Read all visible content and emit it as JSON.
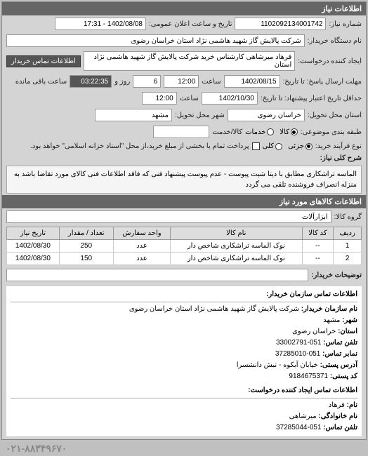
{
  "header": {
    "title": "اطلاعات نیاز"
  },
  "info": {
    "need_no_label": "شماره نیاز:",
    "need_no": "1102092134001742",
    "announce_label": "تاریخ و ساعت اعلان عمومی:",
    "announce_value": "1402/08/08 - 17:31",
    "buyer_org_label": "نام دستگاه خریدار:",
    "buyer_org": "شرکت پالایش گاز شهید هاشمی نژاد   استان خراسان رضوی",
    "requester_label": "ایجاد کننده درخواست:",
    "requester": "فرهاد میرشاهی کارشناس خرید شرکت پالایش گاز شهید هاشمی نژاد   استان",
    "buyer_contact_btn": "اطلاعات تماس خریدار",
    "deadline_send_label": "مهلت ارسال پاسخ: تا تاریخ:",
    "deadline_send_date": "1402/08/15",
    "time_label": "ساعت",
    "deadline_send_time": "12:00",
    "days_label": "روز و",
    "days_value": "6",
    "remain_label": "ساعت باقی مانده",
    "remain_value": "03:22:35",
    "credit_label": "حداقل تاریخ اعتبار پیشنهاد: تا تاریخ:",
    "credit_date": "1402/10/30",
    "credit_time": "12:00",
    "delivery_state_label": "استان محل تحویل:",
    "delivery_state": "خراسان رضوی",
    "delivery_city_label": "شهر محل تحویل:",
    "delivery_city": "مشهد",
    "budget_label": "طبقه بندی موضوعی:",
    "budget_opts": {
      "kala": "کالا",
      "khadamat": "خدمات"
    },
    "kala_khadmat_label": "کالا/خدمت",
    "buy_type_label": "نوع فرآیند خرید:",
    "buy_opts": {
      "partial": "جزئی",
      "total": "کلی"
    },
    "tax_note": "پرداخت تمام یا بخشی از مبلغ خرید،از محل \"اسناد خزانه اسلامی\" خواهد بود.",
    "desc_label": "شرح کلی نیاز:",
    "desc_text": "الماسه تراشکاری مطابق با دیتا شیت پیوست - عدم پیوست پیشنهاد فنی که فاقد اطلاعات فنی کالای مورد تقاضا باشد به منزله انصراف فروشنده تلقی می گردد"
  },
  "goods": {
    "header": "اطلاعات کالاهای مورد نیاز",
    "group_label": "گروه کالا:",
    "group_value": "ابزارآلات",
    "columns": [
      "ردیف",
      "کد کالا",
      "نام کالا",
      "واحد سفارش",
      "تعداد / مقدار",
      "تاریخ نیاز"
    ],
    "rows": [
      [
        "1",
        "--",
        "نوک الماسه تراشکاری شاخص دار",
        "عدد",
        "250",
        "1402/08/30"
      ],
      [
        "2",
        "--",
        "نوک الماسه تراشکاری شاخص دار",
        "عدد",
        "150",
        "1402/08/30"
      ]
    ],
    "buyer_notes_label": "توضیحات خریدار:"
  },
  "contact": {
    "header": "اطلاعات تماس سازمان خریدار:",
    "org_label": "نام سازمان خریدار:",
    "org": "شرکت پالایش گاز شهید هاشمی نژاد استان خراسان رضوی",
    "city_label": "شهر:",
    "city": "مشهد",
    "state_label": "استان:",
    "state": "خراسان رضوی",
    "phone_label": "تلفن تماس:",
    "phone": "051-33002791",
    "fax_label": "نمابر تماس:",
    "fax": "051-37285010",
    "address_label": "آدرس پستی:",
    "address": "خیابان آبکوه - نبش دانشسرا",
    "postcode_label": "کد پستی:",
    "postcode": "9184675371",
    "req_creator_header": "اطلاعات تماس ایجاد کننده درخواست:",
    "name_label": "نام:",
    "name": "فرهاد",
    "family_label": "نام خانوادگی:",
    "family": "میرشاهی",
    "req_phone": "051-37285044"
  },
  "footer_phone": "۰۲۱-۸۸۳۴۹۶۷۰"
}
